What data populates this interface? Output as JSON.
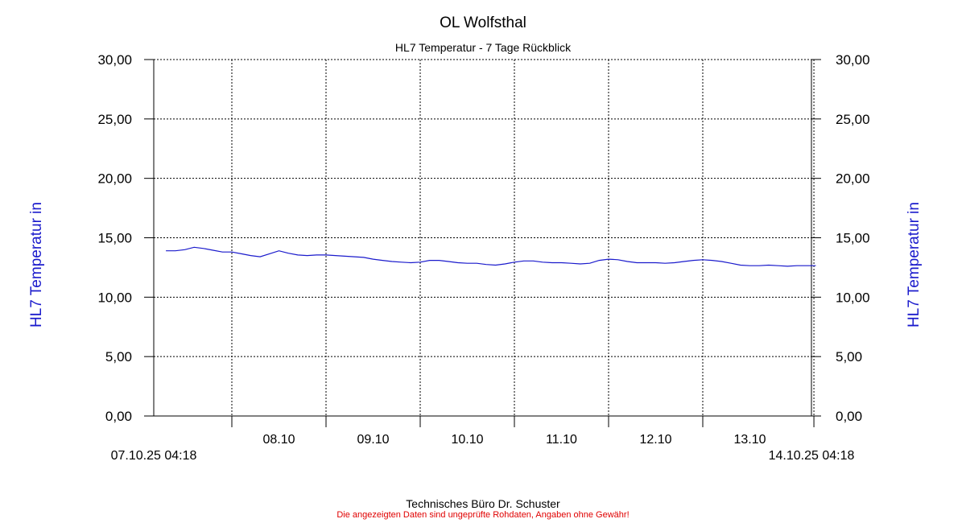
{
  "chart_data": {
    "type": "line",
    "title": "OL Wolfsthal",
    "subtitle": "HL7 Temperatur - 7 Tage Rückblick",
    "ylabel_left": "HL7 Temperatur in",
    "ylabel_right": "HL7 Temperatur in",
    "xlabel": "",
    "ylim": [
      0,
      30
    ],
    "yticks": [
      "0,00",
      "5,00",
      "10,00",
      "15,00",
      "20,00",
      "25,00",
      "30,00"
    ],
    "x_start_label": "07.10.25 04:18",
    "x_end_label": "14.10.25 04:18",
    "x_day_labels": [
      "08.10",
      "09.10",
      "10.10",
      "11.10",
      "12.10",
      "13.10"
    ],
    "grid": true,
    "series": [
      {
        "color": "#1a1acc",
        "x": [
          0,
          0.1,
          0.2,
          0.3,
          0.4,
          0.5,
          0.6,
          0.7,
          0.8,
          0.9,
          1.0,
          1.1,
          1.2,
          1.3,
          1.4,
          1.5,
          1.6,
          1.7,
          1.8,
          1.9,
          2.0,
          2.1,
          2.2,
          2.3,
          2.4,
          2.5,
          2.6,
          2.7,
          2.8,
          2.9,
          3.0,
          3.1,
          3.2,
          3.3,
          3.4,
          3.5,
          3.6,
          3.7,
          3.8,
          3.9,
          4.0,
          4.1,
          4.2,
          4.3,
          4.4,
          4.5,
          4.6,
          4.7,
          4.8,
          4.9,
          5.0,
          5.1,
          5.2,
          5.3,
          5.4,
          5.5,
          5.6,
          5.7,
          5.8,
          5.9,
          6.0,
          6.1,
          6.2,
          6.3,
          6.4,
          6.5,
          6.6,
          6.7,
          6.8,
          6.9
        ],
        "y": [
          13.9,
          13.9,
          14.0,
          14.2,
          14.1,
          13.95,
          13.8,
          13.8,
          13.65,
          13.5,
          13.4,
          13.65,
          13.9,
          13.7,
          13.55,
          13.5,
          13.55,
          13.55,
          13.5,
          13.45,
          13.4,
          13.35,
          13.2,
          13.1,
          13.0,
          12.95,
          12.9,
          12.95,
          13.1,
          13.1,
          13.0,
          12.9,
          12.85,
          12.85,
          12.75,
          12.7,
          12.8,
          12.95,
          13.05,
          13.05,
          12.95,
          12.9,
          12.9,
          12.85,
          12.8,
          12.85,
          13.1,
          13.2,
          13.15,
          13.0,
          12.9,
          12.9,
          12.9,
          12.85,
          12.9,
          13.0,
          13.1,
          13.15,
          13.1,
          13.0,
          12.85,
          12.7,
          12.65,
          12.65,
          12.7,
          12.65,
          12.6,
          12.65,
          12.65,
          12.65
        ]
      }
    ]
  },
  "footer": {
    "credit": "Technisches Büro Dr. Schuster",
    "disclaimer": "Die angezeigten Daten sind ungeprüfte Rohdaten, Angaben ohne Gewähr!"
  }
}
